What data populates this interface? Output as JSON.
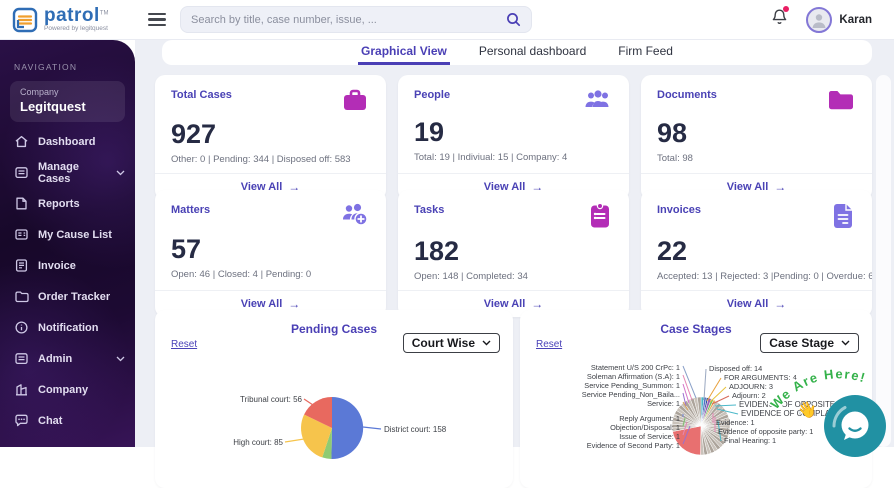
{
  "topbar": {
    "logo_text": "patrol",
    "logo_tm": "TM",
    "logo_tagline": "Powered by legitquest",
    "search_placeholder": "Search by title, case number, issue, ...",
    "user_name": "Karan"
  },
  "sidebar": {
    "section_label": "NAVIGATION",
    "company_label": "Company",
    "company_name": "Legitquest",
    "items": [
      {
        "label": "Dashboard",
        "icon": "home-icon",
        "expandable": false
      },
      {
        "label": "Manage Cases",
        "icon": "cases-icon",
        "expandable": true
      },
      {
        "label": "Reports",
        "icon": "reports-icon",
        "expandable": false
      },
      {
        "label": "My Cause List",
        "icon": "cause-list-icon",
        "expandable": false
      },
      {
        "label": "Invoice",
        "icon": "invoice-icon",
        "expandable": false
      },
      {
        "label": "Order Tracker",
        "icon": "order-tracker-icon",
        "expandable": false
      },
      {
        "label": "Notification",
        "icon": "notification-icon",
        "expandable": false
      },
      {
        "label": "Admin",
        "icon": "admin-icon",
        "expandable": true
      },
      {
        "label": "Company",
        "icon": "company-icon",
        "expandable": false
      },
      {
        "label": "Chat",
        "icon": "chat-icon",
        "expandable": false
      }
    ]
  },
  "tabs": [
    {
      "label": "Graphical View",
      "active": true
    },
    {
      "label": "Personal dashboard",
      "active": false
    },
    {
      "label": "Firm Feed",
      "active": false
    }
  ],
  "cards": [
    {
      "title": "Total Cases",
      "value": "927",
      "subtitle": "Other: 0 | Pending: 344 | Disposed off: 583",
      "link_label": "View All",
      "link_arrow": "→",
      "icon": "briefcase-icon",
      "icon_color": "#b32db6"
    },
    {
      "title": "People",
      "value": "19",
      "subtitle": "Total: 19 | Indiviual: 15 | Company: 4",
      "link_label": "View All",
      "link_arrow": "→",
      "icon": "people-icon",
      "icon_color": "#7f72e3"
    },
    {
      "title": "Documents",
      "value": "98",
      "subtitle": "Total: 98",
      "link_label": "View All",
      "link_arrow": "→",
      "icon": "folder-icon",
      "icon_color": "#b32db6"
    },
    {
      "title": "Matters",
      "value": "57",
      "subtitle": "Open: 46 | Closed: 4 | Pending: 0",
      "link_label": "View All",
      "link_arrow": "→",
      "icon": "matters-icon",
      "icon_color": "#7f72e3"
    },
    {
      "title": "Tasks",
      "value": "182",
      "subtitle": "Open: 148 | Completed: 34",
      "link_label": "View All",
      "link_arrow": "→",
      "icon": "clipboard-icon",
      "icon_color": "#b32db6"
    },
    {
      "title": "Invoices",
      "value": "22",
      "subtitle": "Accepted: 13 | Rejected: 3 |Pending: 0 | Overdue: 6",
      "link_label": "View All",
      "link_arrow": "→",
      "icon": "invoice-doc-icon",
      "icon_color": "#7f72e3"
    }
  ],
  "charts": {
    "pending": {
      "title": "Pending Cases",
      "reset_label": "Reset",
      "filter_label": "Court Wise",
      "callouts": [
        "Tribunal court: 56",
        "District court: 158",
        "High court: 85"
      ],
      "chart_data": {
        "type": "pie",
        "title": "Pending Cases",
        "slices": [
          {
            "label": "District court",
            "value": 158,
            "color": "#5b79d6"
          },
          {
            "label": "Other (slice cut off at screen edge)",
            "value": 15,
            "color": "#8fcb72"
          },
          {
            "label": "High court",
            "value": 85,
            "color": "#f6c44c"
          },
          {
            "label": "Tribunal court",
            "value": 56,
            "color": "#e8695f"
          }
        ],
        "legend_position": "callout-labels"
      }
    },
    "stages": {
      "title": "Case Stages",
      "reset_label": "Reset",
      "filter_label": "Case Stage",
      "callouts_left": [
        "Statement U/S 200 CrPc: 1",
        "Soleman Affirmation (S.A): 1",
        "Service Pending_Summon: 1",
        "Service Pending_Non_Baila...",
        "Service: 1",
        "Reply Argument: 1",
        "Objection/Disposal: 1",
        "Issue of Service: 1",
        "Evidence of Second Party: 1"
      ],
      "callouts_right": [
        "Disposed off: 14",
        "FOR ARGUMENTS: 4",
        "ADJOURN: 3",
        "Adjourn: 2",
        "EVIDENCE OF OPPOSITE...",
        "EVIDENCE OF COMPLAIN...",
        "Evidence: 1",
        "Evidence of opposite party: 1",
        "Final Hearing: 1"
      ],
      "chart_data": {
        "type": "pie",
        "title": "Case Stages",
        "points": [
          {
            "label": "Disposed off",
            "value": 14
          },
          {
            "label": "FOR ARGUMENTS",
            "value": 4
          },
          {
            "label": "ADJOURN",
            "value": 3
          },
          {
            "label": "Adjourn",
            "value": 2
          },
          {
            "label": "Statement U/S 200 CrPc",
            "value": 1
          },
          {
            "label": "Soleman Affirmation (S.A)",
            "value": 1
          },
          {
            "label": "Service Pending_Summon",
            "value": 1
          },
          {
            "label": "Service Pending_Non_Baila...",
            "value": 1
          },
          {
            "label": "Service",
            "value": 1
          },
          {
            "label": "Reply Argument",
            "value": 1
          },
          {
            "label": "Objection/Disposal",
            "value": 1
          },
          {
            "label": "Issue of Service",
            "value": 1
          },
          {
            "label": "Evidence of Second Party",
            "value": 1
          },
          {
            "label": "Evidence",
            "value": 1
          },
          {
            "label": "Evidence of opposite party",
            "value": 1
          },
          {
            "label": "Final Hearing",
            "value": 1
          }
        ],
        "note": "Pie is dominated by many thin grey 1-count slices; large red slice is the Disposed off group; small coloured slivers sit near the top.",
        "render_slices": [
          {
            "v": 6,
            "c": "#49b6c6"
          },
          {
            "v": 5,
            "c": "#5470c6"
          },
          {
            "v": 4,
            "c": "#2f4f9e"
          },
          {
            "v": 6,
            "c": "#9a60b4"
          },
          {
            "v": 5,
            "c": "#73c06b"
          },
          {
            "v": 4,
            "c": "#e8a13c"
          },
          {
            "v": 151,
            "c": "#c9c2ba",
            "n": 21,
            "alt": "#aca49b"
          },
          {
            "v": 78,
            "c": "#e87070"
          },
          {
            "v": 101,
            "c": "#c9c2ba",
            "n": 14,
            "alt": "#aca49b"
          }
        ]
      }
    }
  },
  "chat_widget": {
    "text": "We Are Here!",
    "hand_emoji": "👋"
  }
}
